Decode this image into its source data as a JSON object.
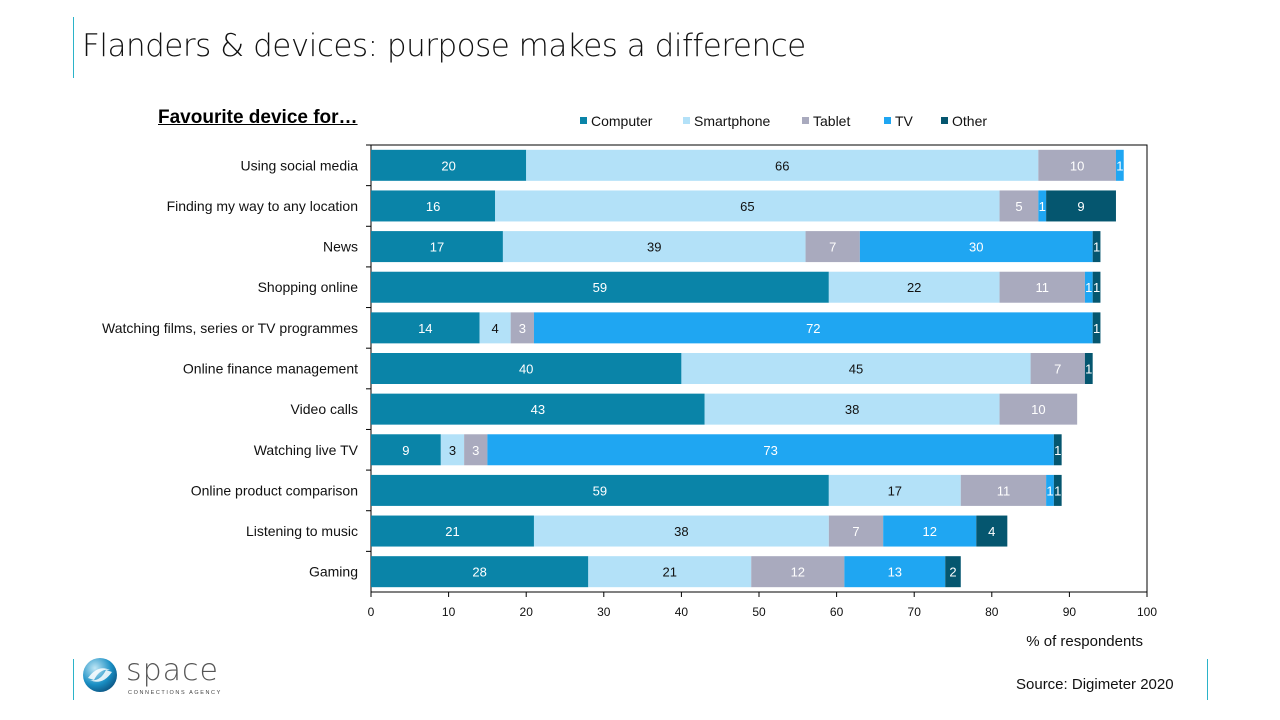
{
  "title": "Flanders & devices: purpose makes a difference",
  "source": "Source: Digimeter 2020",
  "logo": {
    "name": "space",
    "tagline": "CONNECTIONS AGENCY"
  },
  "chart_data": {
    "type": "bar",
    "orientation": "horizontal-stacked",
    "title": "Favourite device for…",
    "xlabel": "% of respondents",
    "xlim": [
      0,
      100
    ],
    "xticks": [
      0,
      10,
      20,
      30,
      40,
      50,
      60,
      70,
      80,
      90,
      100
    ],
    "legend_position": "top",
    "categories": [
      "Using social media",
      "Finding my way to any location",
      "News",
      "Shopping online",
      "Watching films, series or TV programmes",
      "Online finance management",
      "Video calls",
      "Watching live TV",
      "Online product comparison",
      "Listening to music",
      "Gaming"
    ],
    "series": [
      {
        "name": "Computer",
        "color": "#0a84a8",
        "label_color": "#ffffff",
        "values": [
          20,
          16,
          17,
          59,
          14,
          40,
          43,
          9,
          59,
          21,
          28
        ]
      },
      {
        "name": "Smartphone",
        "color": "#b3e1f8",
        "label_color": "#111111",
        "values": [
          66,
          65,
          39,
          22,
          4,
          45,
          38,
          3,
          17,
          38,
          21
        ]
      },
      {
        "name": "Tablet",
        "color": "#a9aabe",
        "label_color": "#ffffff",
        "values": [
          10,
          5,
          7,
          11,
          3,
          7,
          10,
          3,
          11,
          7,
          12
        ]
      },
      {
        "name": "TV",
        "color": "#1fa6f2",
        "label_color": "#ffffff",
        "values": [
          1,
          1,
          30,
          1,
          72,
          0,
          0,
          73,
          1,
          12,
          13
        ]
      },
      {
        "name": "Other",
        "color": "#05566f",
        "label_color": "#ffffff",
        "values": [
          0,
          9,
          1,
          1,
          1,
          1,
          0,
          1,
          1,
          4,
          2
        ]
      }
    ]
  }
}
